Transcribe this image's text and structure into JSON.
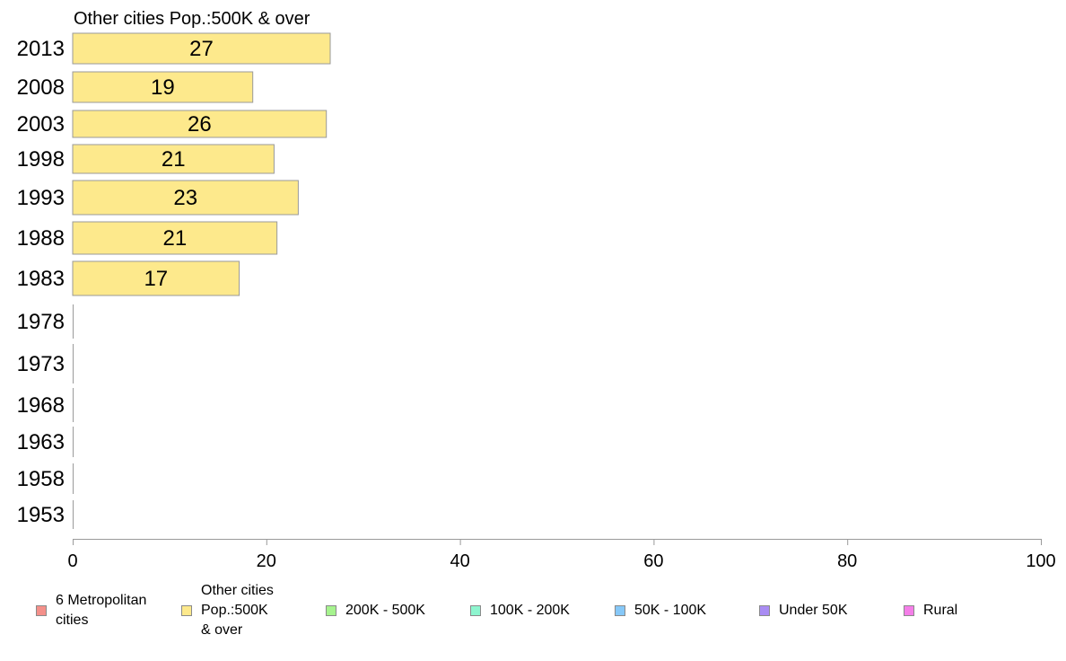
{
  "chart_data": {
    "type": "bar",
    "orientation": "horizontal",
    "title": "Other cities Pop.:500K & over",
    "xlabel": "",
    "ylabel": "",
    "categories": [
      "2013",
      "2008",
      "2003",
      "1998",
      "1993",
      "1988",
      "1983",
      "1978",
      "1973",
      "1968",
      "1963",
      "1958",
      "1953"
    ],
    "series": [
      {
        "name": "Other cities Pop.:500K & over",
        "color": "#fde98c",
        "values": [
          26.6,
          18.6,
          26.2,
          20.8,
          23.3,
          21.1,
          17.2,
          0,
          0,
          0,
          0,
          0,
          0
        ],
        "labels": [
          "27",
          "19",
          "26",
          "21",
          "23",
          "21",
          "17",
          "",
          "",
          "",
          "",
          "",
          ""
        ]
      }
    ],
    "xlim": [
      0,
      100
    ],
    "xticks": [
      0,
      20,
      40,
      60,
      80,
      100
    ],
    "grid": false,
    "legend_position": "bottom"
  },
  "legend": {
    "items": [
      {
        "label": "6 Metropolitan\n cities",
        "color": "#f4908a"
      },
      {
        "label": "Other cities\nPop.:500K\n & over",
        "color": "#fde98c"
      },
      {
        "label": "200K - 500K",
        "color": "#a6f38e"
      },
      {
        "label": "100K - 200K",
        "color": "#8ef5cf"
      },
      {
        "label": "50K - 100K",
        "color": "#86c8f8"
      },
      {
        "label": "Under 50K",
        "color": "#a98cf3"
      },
      {
        "label": "Rural",
        "color": "#f47ee8"
      }
    ]
  }
}
